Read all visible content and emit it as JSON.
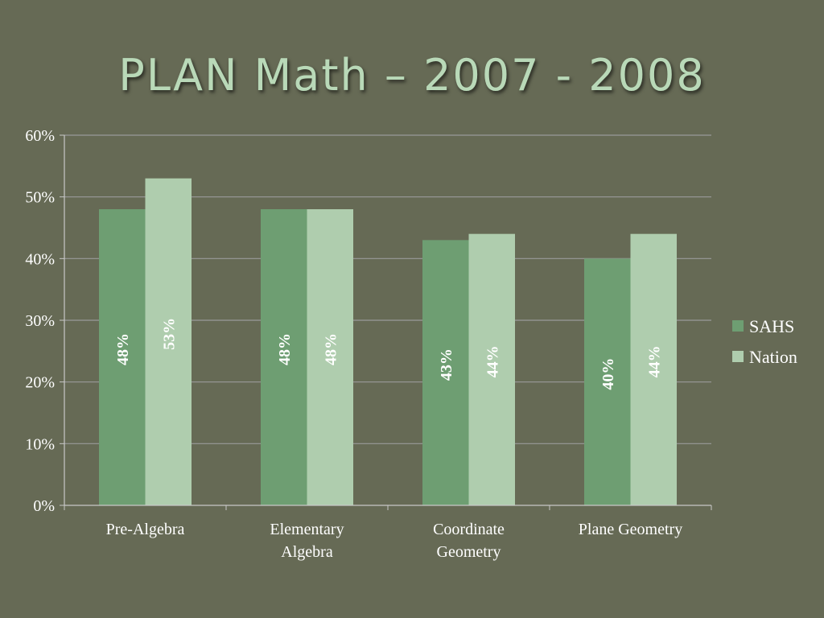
{
  "slide": {
    "title": "PLAN Math – 2007 - 2008"
  },
  "chart_data": {
    "type": "bar",
    "categories": [
      [
        "Pre-Algebra"
      ],
      [
        "Elementary",
        "Algebra"
      ],
      [
        "Coordinate",
        "Geometry"
      ],
      [
        "Plane Geometry"
      ]
    ],
    "series": [
      {
        "name": "SAHS",
        "values": [
          48,
          48,
          43,
          40
        ],
        "labels": [
          "48%",
          "48%",
          "43%",
          "40%"
        ],
        "color": "#6e9e72"
      },
      {
        "name": "Nation",
        "values": [
          53,
          48,
          44,
          44
        ],
        "labels": [
          "53%",
          "48%",
          "44%",
          "44%"
        ],
        "color": "#afcdae"
      }
    ],
    "ylim": [
      0,
      60
    ],
    "yticks": [
      {
        "value": 0,
        "label": "0%"
      },
      {
        "value": 10,
        "label": "10%"
      },
      {
        "value": 20,
        "label": "20%"
      },
      {
        "value": 30,
        "label": "30%"
      },
      {
        "value": 40,
        "label": "40%"
      },
      {
        "value": 50,
        "label": "50%"
      },
      {
        "value": 60,
        "label": "60%"
      }
    ],
    "grid": true,
    "legend": "right",
    "axis_color": "#c8c8c8",
    "grid_color": "#9a9a9a"
  }
}
